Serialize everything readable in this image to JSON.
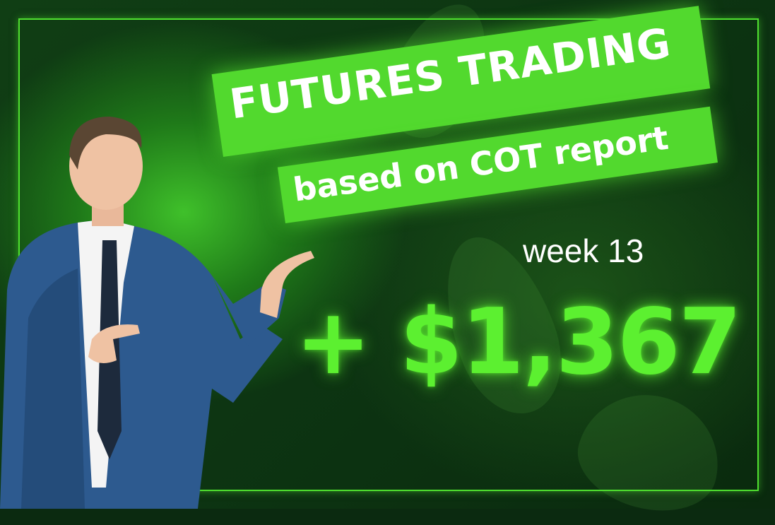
{
  "headline": {
    "line1": "FUTURES TRADING",
    "line2": "based on COT report"
  },
  "week_label": "week 13",
  "profit": "+ $1,367",
  "colors": {
    "accent": "#52d92e",
    "amount": "#5cf030",
    "background": "#0d3512"
  }
}
